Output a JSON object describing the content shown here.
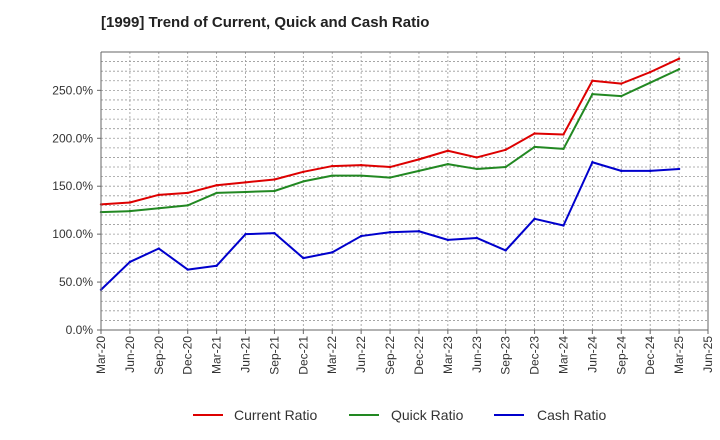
{
  "chart_data": {
    "type": "line",
    "title": "[1999]  Trend of Current, Quick and Cash Ratio",
    "xlabel": "",
    "ylabel": "",
    "grid": true,
    "legend_position": "bottom",
    "ylim": [
      0,
      290
    ],
    "y_ticks": [
      0,
      50,
      100,
      150,
      200,
      250
    ],
    "y_tick_labels": [
      "0.0%",
      "50.0%",
      "100.0%",
      "150.0%",
      "200.0%",
      "250.0%"
    ],
    "x_tick_labels": [
      "Mar-20",
      "Jun-20",
      "Sep-20",
      "Dec-20",
      "Mar-21",
      "Jun-21",
      "Sep-21",
      "Dec-21",
      "Mar-22",
      "Jun-22",
      "Sep-22",
      "Dec-22",
      "Mar-23",
      "Jun-23",
      "Sep-23",
      "Dec-23",
      "Mar-24",
      "Jun-24",
      "Sep-24",
      "Dec-24",
      "Mar-25",
      "Jun-25"
    ],
    "categories": [
      "Mar-20",
      "Jun-20",
      "Sep-20",
      "Dec-20",
      "Mar-21",
      "Jun-21",
      "Sep-21",
      "Dec-21",
      "Mar-22",
      "Jun-22",
      "Sep-22",
      "Dec-22",
      "Mar-23",
      "Jun-23",
      "Sep-23",
      "Dec-23",
      "Mar-24",
      "Jun-24",
      "Sep-24",
      "Dec-24",
      "Mar-25"
    ],
    "series": [
      {
        "name": "Current Ratio",
        "color": "#dd0000",
        "values": [
          131,
          133,
          141,
          143,
          151,
          154,
          157,
          165,
          171,
          172,
          170,
          178,
          187,
          180,
          188,
          205,
          204,
          260,
          257,
          269,
          283
        ]
      },
      {
        "name": "Quick Ratio",
        "color": "#228822",
        "values": [
          123,
          124,
          127,
          130,
          143,
          144,
          145,
          155,
          161,
          161,
          159,
          166,
          173,
          168,
          170,
          191,
          189,
          246,
          244,
          258,
          272
        ]
      },
      {
        "name": "Cash Ratio",
        "color": "#0000cc",
        "values": [
          42,
          71,
          85,
          63,
          67,
          100,
          101,
          75,
          81,
          98,
          102,
          103,
          94,
          96,
          83,
          116,
          109,
          175,
          166,
          166,
          168
        ]
      }
    ]
  }
}
